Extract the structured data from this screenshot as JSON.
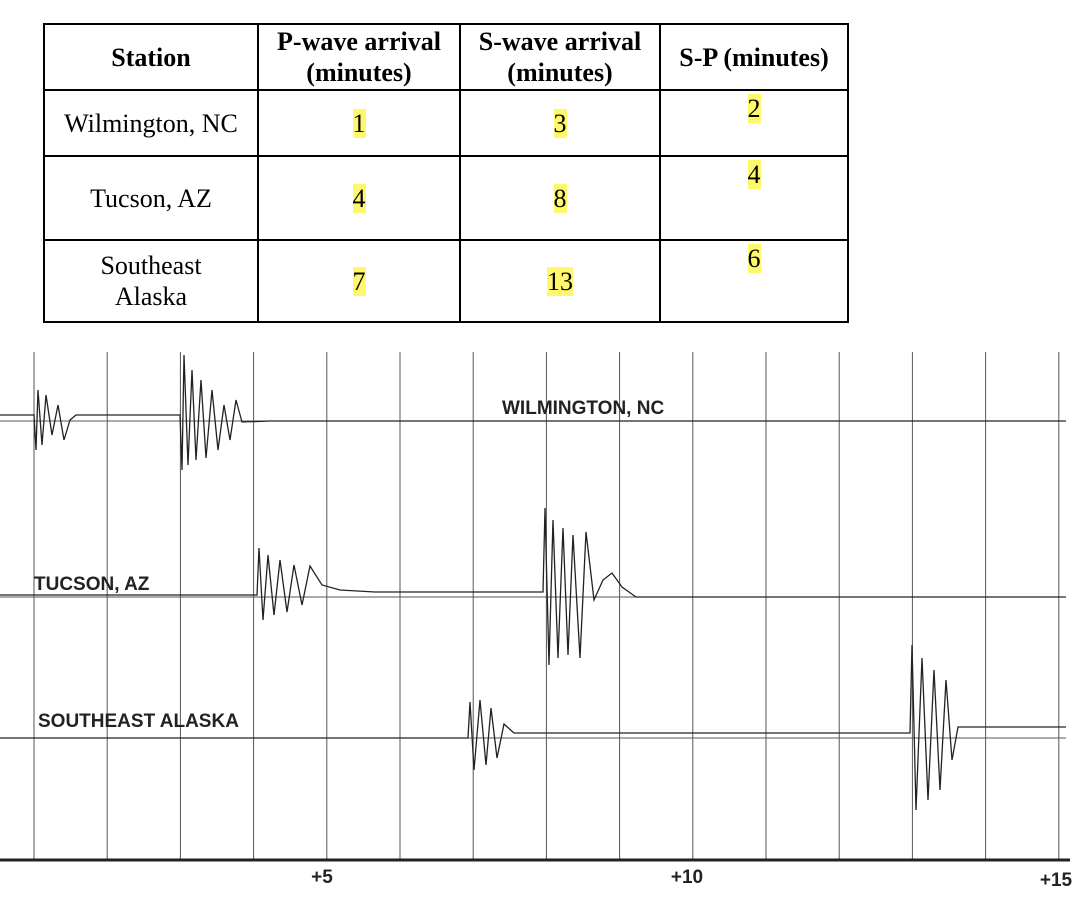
{
  "table": {
    "header": [
      "Station",
      "P-wave arrival (minutes)",
      "S-wave arrival (minutes)",
      "S-P (minutes)"
    ],
    "rows": [
      [
        "Wilmington, NC",
        1,
        3,
        2
      ],
      [
        "Tucson, AZ",
        4,
        8,
        4
      ],
      [
        "Southeast Alaska",
        7,
        13,
        6
      ]
    ]
  },
  "seismogram": {
    "stations": [
      "WILMINGTON, NC",
      "TUCSON, AZ",
      "SOUTHEAST ALASKA"
    ],
    "axis_labels": [
      "+5",
      "+10",
      "+15"
    ]
  }
}
